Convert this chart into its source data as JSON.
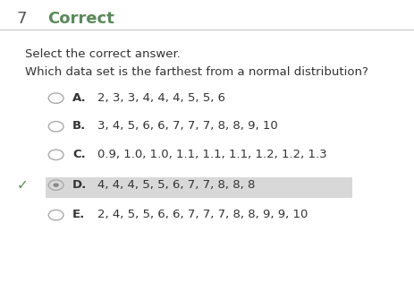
{
  "question_number": "7",
  "header": "Correct",
  "instruction": "Select the correct answer.",
  "question": "Which data set is the farthest from a normal distribution?",
  "options": [
    {
      "letter": "A.",
      "text": "2, 3, 3, 4, 4, 4, 5, 5, 6"
    },
    {
      "letter": "B.",
      "text": "3, 4, 5, 6, 6, 7, 7, 7, 8, 8, 9, 10"
    },
    {
      "letter": "C.",
      "text": "0.9, 1.0, 1.0, 1.1, 1.1, 1.1, 1.2, 1.2, 1.3"
    },
    {
      "letter": "D.",
      "text": "4, 4, 4, 5, 5, 6, 7, 7, 8, 8, 8"
    },
    {
      "letter": "E.",
      "text": "2, 4, 5, 5, 6, 6, 7, 7, 7, 8, 8, 9, 9, 10"
    }
  ],
  "correct_option": "D",
  "header_color": "#5a8a5a",
  "header_number_color": "#555555",
  "background_color": "#ffffff",
  "text_color": "#333333",
  "radio_color": "#aaaaaa",
  "radio_selected_color": "#888888",
  "check_color": "#5a8a5a",
  "highlight_color": "#d8d8d8",
  "option_label_color": "#333333",
  "divider_color": "#cccccc",
  "font_size_header": 13,
  "font_size_number": 13,
  "font_size_instruction": 9.5,
  "font_size_question": 9.5,
  "font_size_option": 9.5
}
